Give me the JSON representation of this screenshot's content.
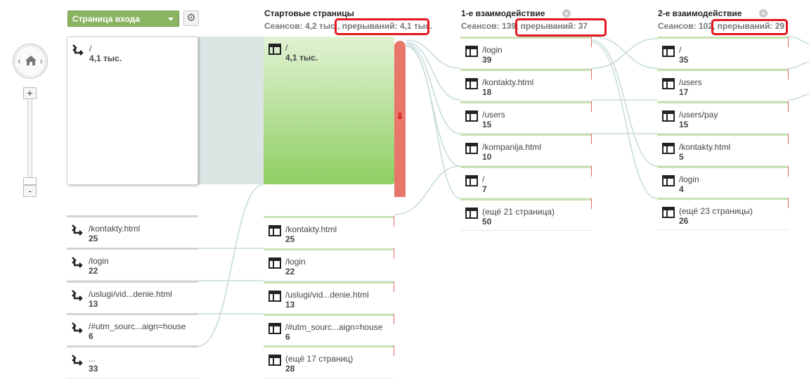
{
  "controls": {
    "dimension_dropdown": "Страница входа",
    "gear_icon": "gear-icon",
    "zoom_in": "+",
    "zoom_out": "-"
  },
  "columns": {
    "starting": {
      "title": "Стартовые страницы",
      "stats": "Сеансов: 4,2 тыс., прерываний: 4,1 тыс."
    },
    "first": {
      "title": "1-е взаимодействие",
      "stats": "Сеансов: 139, прерываний: 37"
    },
    "second": {
      "title": "2-е взаимодействие",
      "stats": "Сеансов: 102, прерываний: 29"
    }
  },
  "source_nodes": [
    {
      "label": "/",
      "value": "4,1 тыс."
    },
    {
      "label": "/kontakty.html",
      "value": "25"
    },
    {
      "label": "/login",
      "value": "22"
    },
    {
      "label": "/uslugi/vid...denie.html",
      "value": "13"
    },
    {
      "label": "/#utm_sourc...aign=house",
      "value": "6"
    },
    {
      "label": "...",
      "value": "33"
    }
  ],
  "starting_nodes": [
    {
      "label": "/",
      "value": "4,1 тыс."
    },
    {
      "label": "/kontakty.html",
      "value": "25"
    },
    {
      "label": "/login",
      "value": "22"
    },
    {
      "label": "/uslugi/vid...denie.html",
      "value": "13"
    },
    {
      "label": "/#utm_sourc...aign=house",
      "value": "6"
    },
    {
      "label": "(ещё 17 страниц)",
      "value": "28"
    }
  ],
  "first_nodes": [
    {
      "label": "/login",
      "value": "39"
    },
    {
      "label": "/kontakty.html",
      "value": "18"
    },
    {
      "label": "/users",
      "value": "15"
    },
    {
      "label": "/kompanija.html",
      "value": "10"
    },
    {
      "label": "/",
      "value": "7"
    },
    {
      "label": "(ещё 21 страница)",
      "value": "50"
    }
  ],
  "second_nodes": [
    {
      "label": "/",
      "value": "35"
    },
    {
      "label": "/users",
      "value": "17"
    },
    {
      "label": "/users/pay",
      "value": "15"
    },
    {
      "label": "/kontakty.html",
      "value": "5"
    },
    {
      "label": "/login",
      "value": "4"
    },
    {
      "label": "(ещё 23 страницы)",
      "value": "26"
    }
  ],
  "colors": {
    "dropdown": "#8bb462",
    "start_node": "#8fcf62",
    "exit": "#e8766b",
    "highlight": "#e3161d",
    "flow": "#c8dcdc"
  }
}
